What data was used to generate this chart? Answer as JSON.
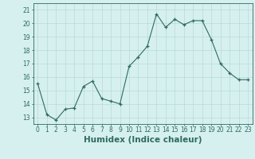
{
  "x": [
    0,
    1,
    2,
    3,
    4,
    5,
    6,
    7,
    8,
    9,
    10,
    11,
    12,
    13,
    14,
    15,
    16,
    17,
    18,
    19,
    20,
    21,
    22,
    23
  ],
  "y": [
    15.5,
    13.2,
    12.8,
    13.6,
    13.7,
    15.3,
    15.7,
    14.4,
    14.2,
    14.0,
    16.8,
    17.5,
    18.3,
    20.7,
    19.7,
    20.3,
    19.9,
    20.2,
    20.2,
    18.8,
    17.0,
    16.3,
    15.8,
    15.8
  ],
  "xlabel": "Humidex (Indice chaleur)",
  "ylim": [
    12.5,
    21.5
  ],
  "yticks": [
    13,
    14,
    15,
    16,
    17,
    18,
    19,
    20,
    21
  ],
  "xlim": [
    -0.5,
    23.5
  ],
  "xticks": [
    0,
    1,
    2,
    3,
    4,
    5,
    6,
    7,
    8,
    9,
    10,
    11,
    12,
    13,
    14,
    15,
    16,
    17,
    18,
    19,
    20,
    21,
    22,
    23
  ],
  "line_color": "#2e6b5e",
  "marker": "+",
  "bg_color": "#d6f0ef",
  "grid_color": "#b8dada",
  "axis_color": "#2e6b5e",
  "tick_label_fontsize": 5.5,
  "xlabel_fontsize": 7.5
}
